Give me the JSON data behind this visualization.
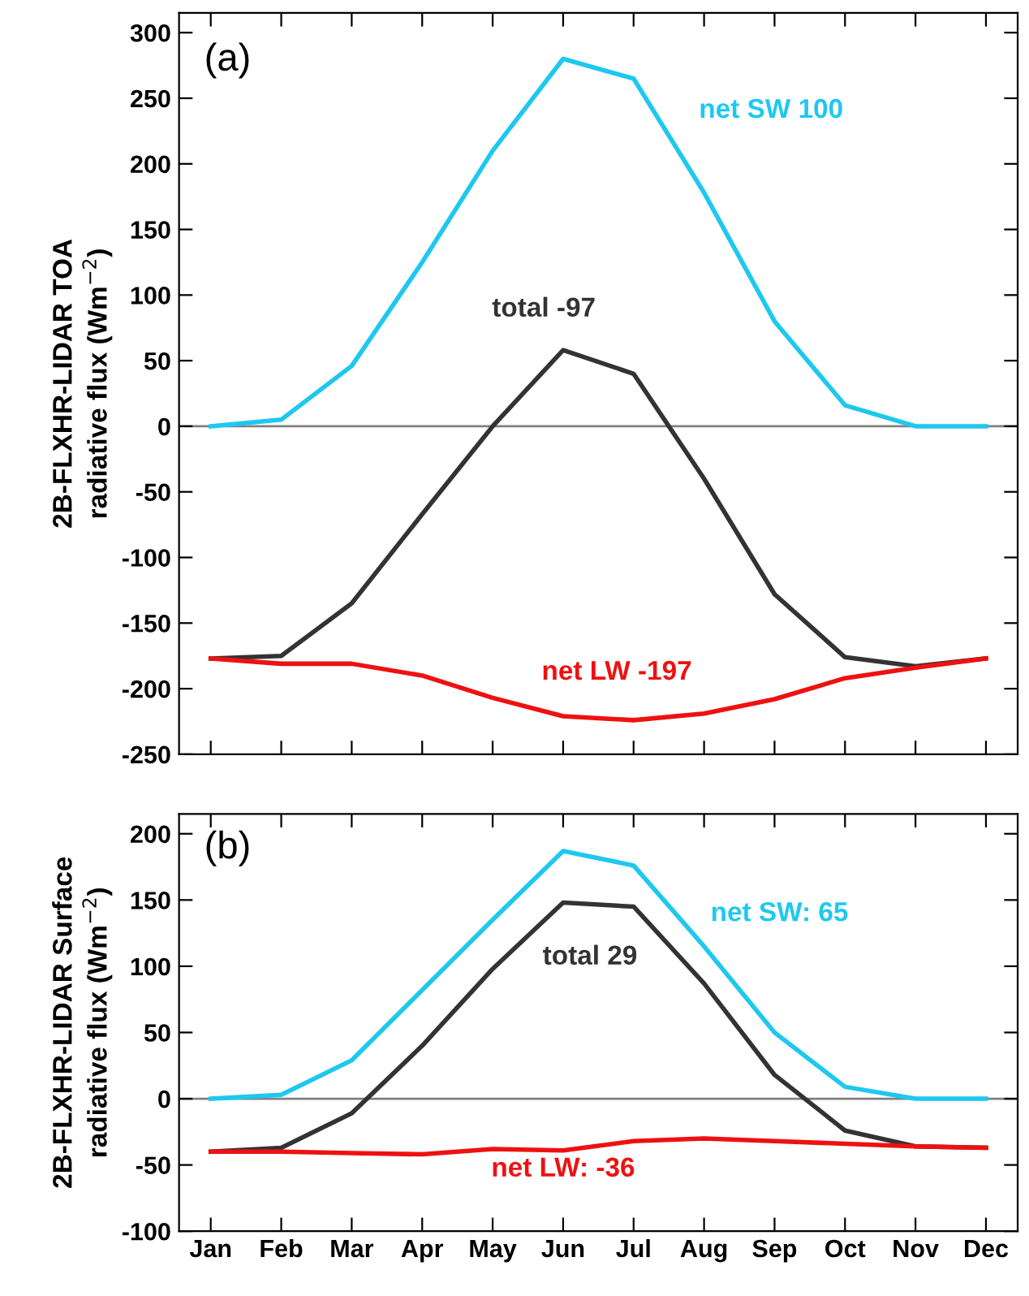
{
  "chart_data": [
    {
      "type": "line",
      "title": "(a)",
      "ylabel": "2B-FLXHR-LIDAR TOA\nradiative flux (Wm$^{−2}$)",
      "categories": [
        null,
        null,
        null,
        null,
        null,
        null,
        null,
        null,
        null,
        null,
        null,
        null
      ],
      "series": [
        {
          "name": "net SW 100",
          "color": "#1ec8ef",
          "values": [
            0,
            5,
            46,
            125,
            210,
            280,
            265,
            178,
            80,
            16,
            0,
            0
          ]
        },
        {
          "name": "total -97",
          "color": "#333333",
          "values": [
            -177,
            -175,
            -135,
            -67,
            0,
            58,
            40,
            -40,
            -128,
            -176,
            -183,
            -177
          ]
        },
        {
          "name": "net LW -197",
          "color": "#ee1111",
          "values": [
            -177,
            -181,
            -181,
            -190,
            -207,
            -221,
            -224,
            -219,
            -208,
            -192,
            -184,
            -177
          ]
        }
      ],
      "ylim": [
        -250,
        315
      ],
      "yticks": [
        -250,
        -200,
        -150,
        -100,
        -50,
        0,
        50,
        100,
        150,
        200,
        250,
        300
      ],
      "ref_lines": [
        {
          "axis": "y",
          "value": 0,
          "color": "#808080"
        }
      ],
      "tick_labels": "y",
      "grid": false,
      "legend": false
    },
    {
      "type": "line",
      "title": "(b)",
      "ylabel": "2B-FLXHR-LIDAR Surface\nradiative flux (Wm$^{−2}$)",
      "categories": [
        "Jan",
        "Feb",
        "Mar",
        "Apr",
        "May",
        "Jun",
        "Jul",
        "Aug",
        "Sep",
        "Oct",
        "Nov",
        "Dec"
      ],
      "series": [
        {
          "name": "net SW: 65",
          "color": "#1ec8ef",
          "values": [
            0,
            3,
            29,
            82,
            135,
            187,
            176,
            115,
            50,
            9,
            0,
            0
          ]
        },
        {
          "name": "total 29",
          "color": "#333333",
          "values": [
            -40,
            -37,
            -11,
            40,
            98,
            148,
            145,
            87,
            18,
            -24,
            -36,
            -37
          ]
        },
        {
          "name": "net LW: -36",
          "color": "#ee1111",
          "values": [
            -40,
            -40,
            -41,
            -42,
            -38,
            -39,
            -32,
            -30,
            -32,
            -34,
            -36,
            -37
          ]
        }
      ],
      "ylim": [
        -100,
        215
      ],
      "yticks": [
        -100,
        -50,
        0,
        50,
        100,
        150,
        200
      ],
      "ref_lines": [
        {
          "axis": "y",
          "value": 0,
          "color": "#808080"
        }
      ],
      "grid": false,
      "legend": false
    }
  ]
}
